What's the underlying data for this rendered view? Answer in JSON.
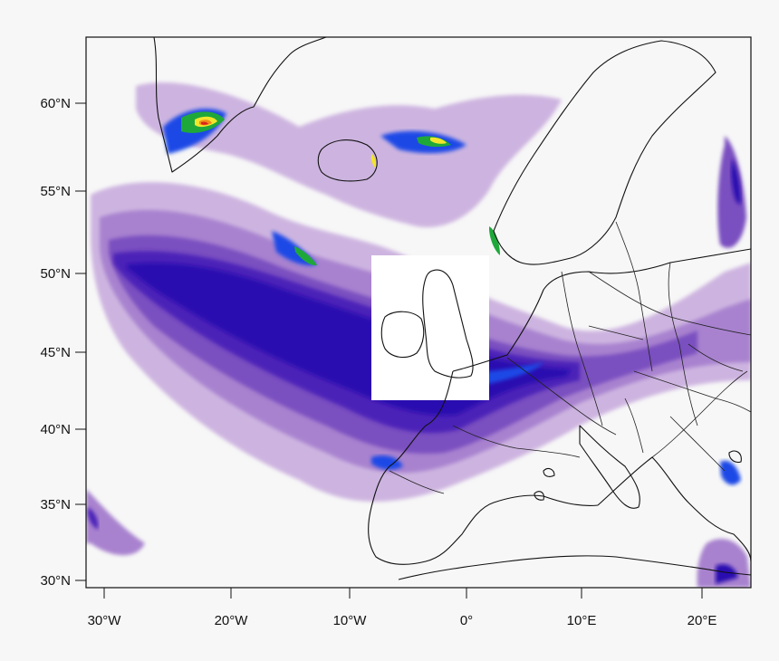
{
  "map": {
    "projection": "lambert-conformal",
    "lat_ticks": [
      "30°N",
      "35°N",
      "40°N",
      "45°N",
      "50°N",
      "55°N",
      "60°N"
    ],
    "lon_ticks": [
      "30°W",
      "20°W",
      "10°W",
      "0°",
      "10°E",
      "20°E"
    ],
    "colors": {
      "very_light": "#cdb4e0",
      "light": "#a882cf",
      "medium": "#7a4fc0",
      "dark": "#4b22b8",
      "deep": "#2c0fb0",
      "blue": "#1f49e6",
      "green": "#1fa83a",
      "yellow": "#f2e52b",
      "orange": "#f08a1a",
      "red": "#d8231c",
      "masked": "#ffffff",
      "background": "#f7f7f7"
    }
  }
}
